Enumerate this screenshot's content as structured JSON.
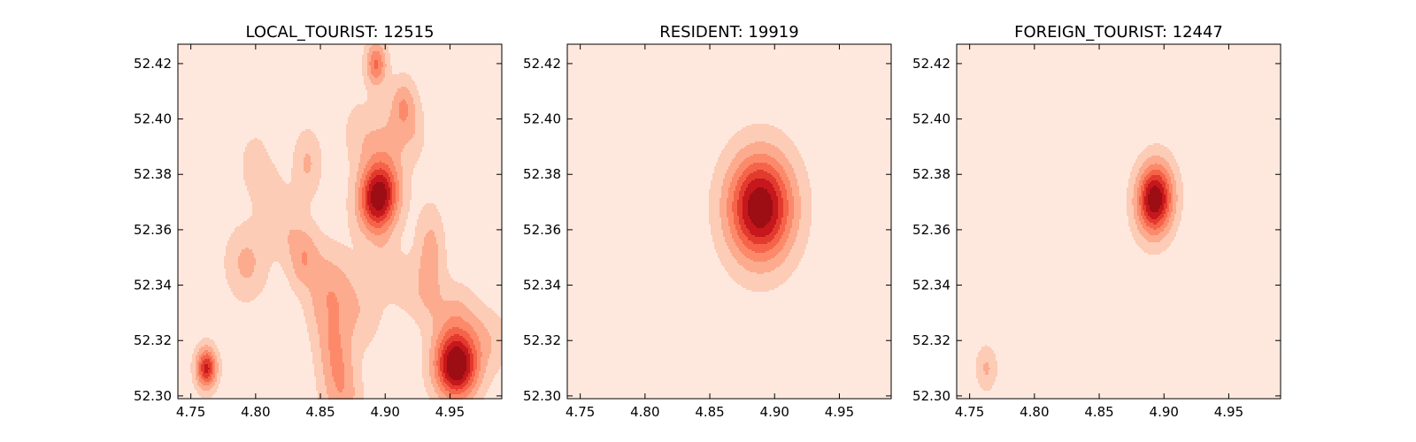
{
  "chart_data": [
    {
      "type": "heatmap",
      "subtype": "kde-density-contour",
      "title": "LOCAL_TOURIST: 12515",
      "xlim": [
        4.74,
        4.99
      ],
      "ylim": [
        52.299,
        52.427
      ],
      "xticks": [
        "4.75",
        "4.80",
        "4.85",
        "4.90",
        "4.95"
      ],
      "yticks": [
        "52.30",
        "52.32",
        "52.34",
        "52.36",
        "52.38",
        "52.40",
        "52.42"
      ],
      "levels": 8,
      "colormap": [
        "#fee8de",
        "#fcccb6",
        "#fcab8f",
        "#fc8a6a",
        "#f5644a",
        "#e33a2e",
        "#c5171c",
        "#9d0d14"
      ],
      "density_peaks": [
        {
          "x": 4.895,
          "y": 52.372,
          "weight": 1.0
        },
        {
          "x": 4.955,
          "y": 52.311,
          "weight": 1.05
        },
        {
          "x": 4.762,
          "y": 52.31,
          "weight": 0.8
        },
        {
          "x": 4.893,
          "y": 52.42,
          "weight": 0.55
        },
        {
          "x": 4.914,
          "y": 52.406,
          "weight": 0.32
        },
        {
          "x": 4.84,
          "y": 52.384,
          "weight": 0.28
        },
        {
          "x": 4.793,
          "y": 52.348,
          "weight": 0.3
        },
        {
          "x": 4.935,
          "y": 52.352,
          "weight": 0.32
        },
        {
          "x": 4.863,
          "y": 52.312,
          "weight": 0.26
        }
      ]
    },
    {
      "type": "heatmap",
      "subtype": "kde-density-contour",
      "title": "RESIDENT: 19919",
      "xlim": [
        4.74,
        4.99
      ],
      "ylim": [
        52.299,
        52.427
      ],
      "xticks": [
        "4.75",
        "4.80",
        "4.85",
        "4.90",
        "4.95"
      ],
      "yticks": [
        "52.30",
        "52.32",
        "52.34",
        "52.36",
        "52.38",
        "52.40",
        "52.42"
      ],
      "levels": 8,
      "colormap": [
        "#fee8de",
        "#fcccb6",
        "#fcab8f",
        "#fc8a6a",
        "#f5644a",
        "#e33a2e",
        "#c5171c",
        "#9d0d14"
      ],
      "density_peaks": [
        {
          "x": 4.889,
          "y": 52.368,
          "weight": 1.0
        }
      ]
    },
    {
      "type": "heatmap",
      "subtype": "kde-density-contour",
      "title": "FOREIGN_TOURIST: 12447",
      "xlim": [
        4.74,
        4.99
      ],
      "ylim": [
        52.299,
        52.427
      ],
      "xticks": [
        "4.75",
        "4.80",
        "4.85",
        "4.90",
        "4.95"
      ],
      "yticks": [
        "52.30",
        "52.32",
        "52.34",
        "52.36",
        "52.38",
        "52.40",
        "52.42"
      ],
      "levels": 8,
      "colormap": [
        "#fee8de",
        "#fcccb6",
        "#fcab8f",
        "#fc8a6a",
        "#f5644a",
        "#e33a2e",
        "#c5171c",
        "#9d0d14"
      ],
      "density_peaks": [
        {
          "x": 4.893,
          "y": 52.371,
          "weight": 1.0
        },
        {
          "x": 4.763,
          "y": 52.31,
          "weight": 0.28
        }
      ]
    }
  ]
}
